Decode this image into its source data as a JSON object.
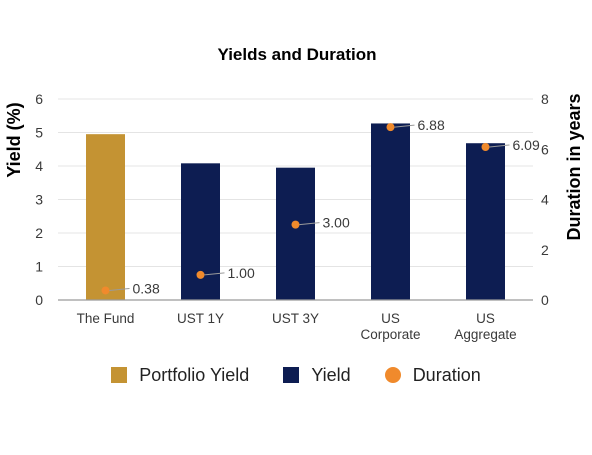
{
  "chart_data": {
    "type": "bar",
    "title": "Yields and Duration",
    "ylabel": "Yield (%)",
    "y2label": "Duration in years",
    "ylim": [
      0,
      6
    ],
    "y2lim": [
      0,
      8
    ],
    "yticks": [
      "0",
      "1",
      "2",
      "3",
      "4",
      "5",
      "6"
    ],
    "y2ticks": [
      "0",
      "2",
      "4",
      "6",
      "8"
    ],
    "grid": true,
    "legend_position": "bottom",
    "categories": [
      [
        "The Fund"
      ],
      [
        "UST 1Y"
      ],
      [
        "UST 3Y"
      ],
      [
        "US",
        "Corporate"
      ],
      [
        "US",
        "Aggregate"
      ]
    ],
    "series": [
      {
        "name": "Portfolio Yield",
        "type": "bar",
        "axis": "left",
        "values": [
          4.95,
          null,
          null,
          null,
          null
        ],
        "color": "#c49333"
      },
      {
        "name": "Yield",
        "type": "bar",
        "axis": "left",
        "values": [
          null,
          4.08,
          3.95,
          5.27,
          4.68
        ],
        "color": "#0d1d52"
      },
      {
        "name": "Duration",
        "type": "scatter",
        "axis": "right",
        "values": [
          0.38,
          1.0,
          3.0,
          6.88,
          6.09
        ],
        "labels": [
          "0.38",
          "1.00",
          "3.00",
          "6.88",
          "6.09"
        ],
        "color": "#f08a2c"
      }
    ]
  }
}
